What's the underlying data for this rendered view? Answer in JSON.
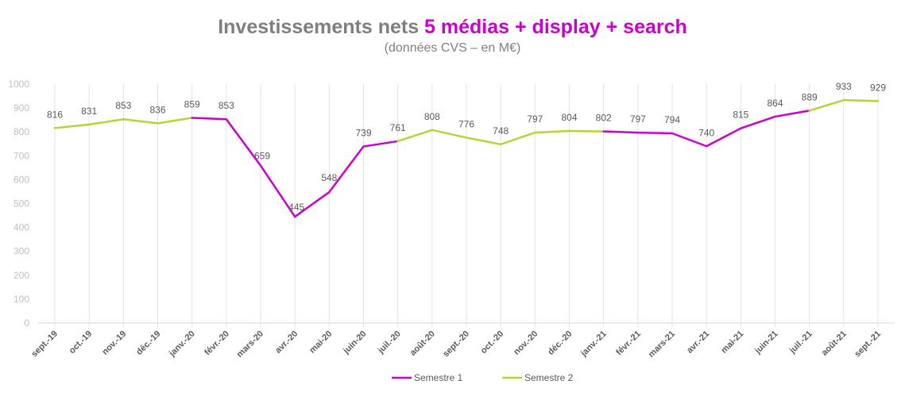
{
  "chart_data": {
    "type": "line",
    "title_part1": "Investissements nets ",
    "title_part2": "5 médias + display + search",
    "subtitle": "(données CVS – en M€)",
    "xlabel": "",
    "ylabel": "",
    "ylim": [
      0,
      1000
    ],
    "yticks": [
      0,
      100,
      200,
      300,
      400,
      500,
      600,
      700,
      800,
      900,
      1000
    ],
    "categories": [
      "sept.-19",
      "oct.-19",
      "nov.-19",
      "déc.-19",
      "janv.-20",
      "févr.-20",
      "mars-20",
      "avr.-20",
      "mai-20",
      "juin-20",
      "juil.-20",
      "août-20",
      "sept.-20",
      "oct.-20",
      "nov.-20",
      "déc.-20",
      "janv.-21",
      "févr.-21",
      "mars-21",
      "avr.-21",
      "mai-21",
      "juin-21",
      "juil.-21",
      "août-21",
      "sept.-21"
    ],
    "values": [
      816,
      831,
      853,
      836,
      859,
      853,
      659,
      445,
      548,
      739,
      761,
      808,
      776,
      748,
      797,
      804,
      802,
      797,
      794,
      740,
      815,
      864,
      889,
      933,
      929
    ],
    "series": [
      {
        "name": "Semestre 1",
        "color": "#cc00cc",
        "months": [
          "janv",
          "févr",
          "mars",
          "avr",
          "mai",
          "juin"
        ]
      },
      {
        "name": "Semestre 2",
        "color": "#b8d432",
        "months": [
          "juil",
          "août",
          "sept",
          "oct",
          "nov",
          "déc"
        ]
      }
    ],
    "grid": "vertical",
    "legend": "bottom-center"
  }
}
